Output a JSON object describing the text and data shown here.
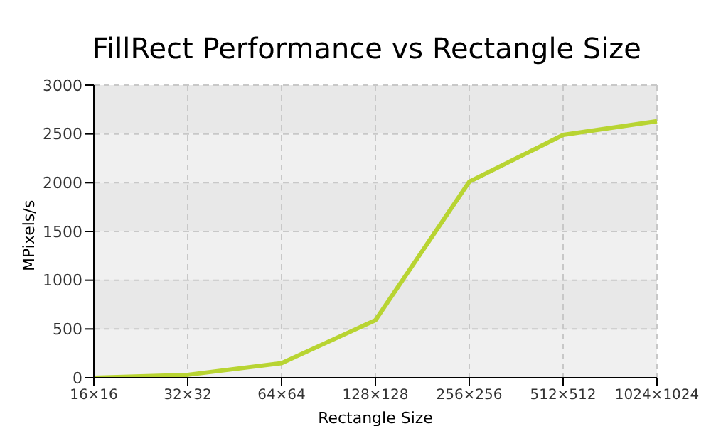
{
  "chart_data": {
    "type": "line",
    "title": "FillRect Performance vs Rectangle Size",
    "xlabel": "Rectangle Size",
    "ylabel": "MPixels/s",
    "categories": [
      "16×16",
      "32×32",
      "64×64",
      "128×128",
      "256×256",
      "512×512",
      "1024×1024"
    ],
    "series": [
      {
        "color": "#b8d432",
        "values": [
          0,
          30,
          150,
          590,
          2010,
          2490,
          2630
        ]
      }
    ],
    "ylim": [
      0,
      3000
    ],
    "yticks": [
      0,
      500,
      1000,
      1500,
      2000,
      2500,
      3000
    ],
    "grid": true,
    "legend": false,
    "marker": "none",
    "line_style": "solid"
  }
}
